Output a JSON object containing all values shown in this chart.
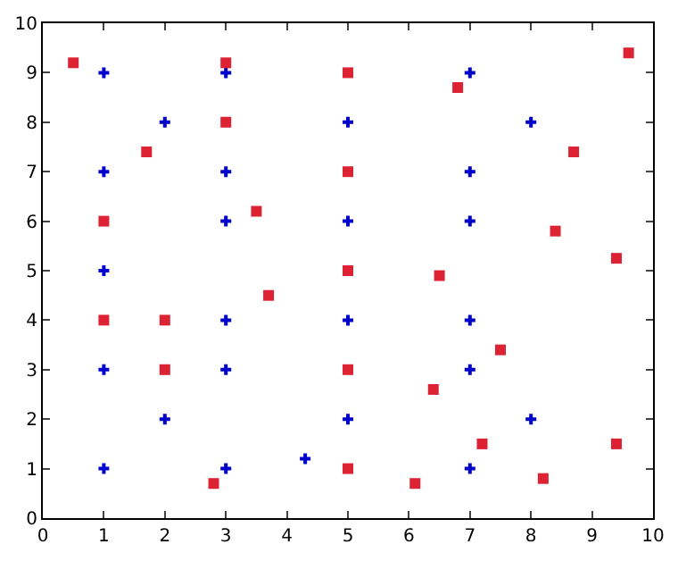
{
  "chart_data": {
    "type": "scatter",
    "xlim": [
      0,
      10
    ],
    "ylim": [
      0,
      10
    ],
    "xticks": [
      0,
      1,
      2,
      3,
      4,
      5,
      6,
      7,
      8,
      9,
      10
    ],
    "yticks": [
      0,
      1,
      2,
      3,
      4,
      5,
      6,
      7,
      8,
      9,
      10
    ],
    "series": [
      {
        "color": "#0000cc",
        "marker": "cross",
        "x": [
          1,
          1,
          1,
          1,
          1,
          2,
          2,
          3,
          3,
          3,
          3,
          3,
          3,
          4.3,
          5,
          5,
          5,
          5,
          7,
          7,
          7,
          7,
          7,
          7,
          8,
          8
        ],
        "values": [
          9,
          7,
          5,
          3,
          1,
          8,
          2,
          9,
          7,
          6,
          4,
          3,
          1,
          1.2,
          8,
          6,
          4,
          2,
          9,
          7,
          6,
          4,
          3,
          1,
          8,
          2
        ]
      },
      {
        "color": "#dd2233",
        "marker": "square",
        "x": [
          0.5,
          1,
          1,
          2,
          2,
          1.7,
          3,
          3,
          3.5,
          3.7,
          2.8,
          5,
          5,
          5,
          5,
          5,
          6.8,
          8.7,
          9.6,
          8.4,
          9.4,
          6.5,
          7.5,
          6.4,
          7.2,
          9.4,
          6.1,
          8.2
        ],
        "values": [
          9.2,
          6,
          4,
          4,
          3,
          7.4,
          9.2,
          8,
          6.2,
          4.5,
          0.7,
          9,
          7,
          5,
          3,
          1,
          8.7,
          7.4,
          9.4,
          5.8,
          5.25,
          4.9,
          3.4,
          2.6,
          1.5,
          1.5,
          0.7,
          0.8
        ]
      }
    ]
  }
}
